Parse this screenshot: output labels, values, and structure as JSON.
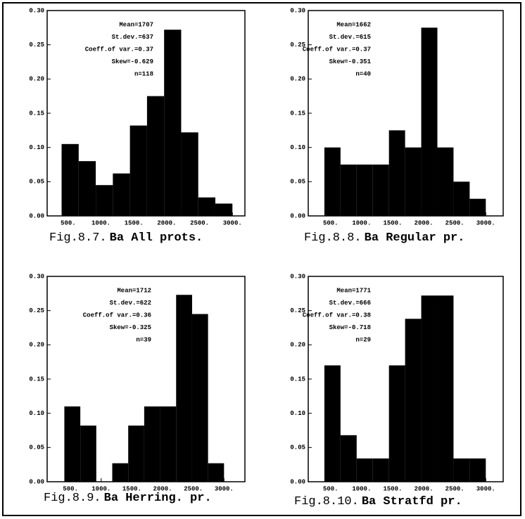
{
  "chart_data": [
    {
      "type": "histogram",
      "figure_label": "Fig.8.7.",
      "title": "Ba All prots.",
      "annotations": [
        "Mean=1707",
        "St.dev.=637",
        "Coeff.of var.=0.37",
        "Skew=-0.629",
        "n=118"
      ],
      "bins": [
        400,
        660,
        920,
        1180,
        1440,
        1700,
        1960,
        2220,
        2480,
        2740,
        3000
      ],
      "values": [
        0.105,
        0.08,
        0.045,
        0.062,
        0.132,
        0.175,
        0.272,
        0.122,
        0.027,
        0.018
      ],
      "color": "#000000",
      "xlim": [
        180,
        3190
      ],
      "ylim": [
        0,
        0.3
      ],
      "xticks": [
        {
          "value": 500,
          "label": "500."
        },
        {
          "value": 1000,
          "label": "1000."
        },
        {
          "value": 1500,
          "label": "1500."
        },
        {
          "value": 2000,
          "label": "2000."
        },
        {
          "value": 2500,
          "label": "2500."
        },
        {
          "value": 3000,
          "label": "3000."
        }
      ],
      "yticks": [
        {
          "value": 0,
          "label": "0.00"
        },
        {
          "value": 0.05,
          "label": "0.05"
        },
        {
          "value": 0.1,
          "label": "0.10"
        },
        {
          "value": 0.15,
          "label": "0.15"
        },
        {
          "value": 0.2,
          "label": "0.20"
        },
        {
          "value": 0.25,
          "label": "0.25"
        },
        {
          "value": 0.3,
          "label": "0.30"
        }
      ]
    },
    {
      "type": "histogram",
      "figure_label": "Fig.8.8.",
      "title": "Ba Regular pr.",
      "annotations": [
        "Mean=1662",
        "St.dev.=615",
        "Coeff.of var.=0.37",
        "Skew=-0.351",
        "n=40"
      ],
      "bins": [
        400,
        660,
        920,
        1180,
        1440,
        1700,
        1960,
        2220,
        2480,
        2740,
        3000
      ],
      "values": [
        0.1,
        0.075,
        0.075,
        0.075,
        0.125,
        0.1,
        0.275,
        0.1,
        0.05,
        0.025
      ],
      "color": "#000000",
      "xlim": [
        140,
        3280
      ],
      "ylim": [
        0,
        0.3
      ],
      "xticks": [
        {
          "value": 500,
          "label": "500."
        },
        {
          "value": 1000,
          "label": "1000."
        },
        {
          "value": 1500,
          "label": "1500."
        },
        {
          "value": 2000,
          "label": "2000."
        },
        {
          "value": 2500,
          "label": "2500."
        },
        {
          "value": 3000,
          "label": "3000."
        }
      ],
      "yticks": [
        {
          "value": 0,
          "label": "0.00"
        },
        {
          "value": 0.05,
          "label": "0.05"
        },
        {
          "value": 0.1,
          "label": "0.10"
        },
        {
          "value": 0.15,
          "label": "0.15"
        },
        {
          "value": 0.2,
          "label": "0.20"
        },
        {
          "value": 0.25,
          "label": "0.25"
        },
        {
          "value": 0.3,
          "label": "0.30"
        }
      ]
    },
    {
      "type": "histogram",
      "figure_label": "Fig.8.9.",
      "title": "Ba Herring. pr.",
      "annotations": [
        "Mean=1712",
        "St.dev.=622",
        "Coeff.of var.=0.36",
        "Skew=-0.325",
        "n=39"
      ],
      "bins": [
        400,
        660,
        920,
        1180,
        1440,
        1700,
        1960,
        2220,
        2480,
        2740,
        3000
      ],
      "values": [
        0.11,
        0.082,
        0,
        0.027,
        0.082,
        0.11,
        0.11,
        0.273,
        0.245,
        0.027
      ],
      "color": "#000000",
      "xlim": [
        120,
        3340
      ],
      "ylim": [
        0,
        0.3
      ],
      "xticks": [
        {
          "value": 500,
          "label": "500."
        },
        {
          "value": 1000,
          "label": "1000."
        },
        {
          "value": 1500,
          "label": "1500."
        },
        {
          "value": 2000,
          "label": "2000."
        },
        {
          "value": 2500,
          "label": "2500."
        },
        {
          "value": 3000,
          "label": "3000."
        }
      ],
      "yticks": [
        {
          "value": 0,
          "label": "0.00"
        },
        {
          "value": 0.05,
          "label": "0.05"
        },
        {
          "value": 0.1,
          "label": "0.10"
        },
        {
          "value": 0.15,
          "label": "0.15"
        },
        {
          "value": 0.2,
          "label": "0.20"
        },
        {
          "value": 0.25,
          "label": "0.25"
        },
        {
          "value": 0.3,
          "label": "0.30"
        }
      ]
    },
    {
      "type": "histogram",
      "figure_label": "Fig.8.10.",
      "title": "Ba Stratfd pr.",
      "annotations": [
        "Mean=1771",
        "St.dev.=666",
        "Coeff.of var.=0.38",
        "Skew=-0.718",
        "n=29"
      ],
      "bins": [
        400,
        660,
        920,
        1180,
        1440,
        1700,
        1960,
        2220,
        2480,
        2740,
        3000
      ],
      "values": [
        0.17,
        0.068,
        0.034,
        0.034,
        0.17,
        0.238,
        0.272,
        0.272,
        0.034,
        0.034
      ],
      "color": "#000000",
      "xlim": [
        140,
        3280
      ],
      "ylim": [
        0,
        0.3
      ],
      "xticks": [
        {
          "value": 500,
          "label": "500."
        },
        {
          "value": 1000,
          "label": "1000."
        },
        {
          "value": 1500,
          "label": "1500."
        },
        {
          "value": 2000,
          "label": "2000."
        },
        {
          "value": 2500,
          "label": "2500."
        },
        {
          "value": 3000,
          "label": "3000."
        }
      ],
      "yticks": [
        {
          "value": 0,
          "label": "0.00"
        },
        {
          "value": 0.05,
          "label": "0.05"
        },
        {
          "value": 0.1,
          "label": "0.10"
        },
        {
          "value": 0.15,
          "label": "0.15"
        },
        {
          "value": 0.2,
          "label": "0.20"
        },
        {
          "value": 0.25,
          "label": "0.25"
        },
        {
          "value": 0.3,
          "label": "0.30"
        }
      ]
    }
  ]
}
